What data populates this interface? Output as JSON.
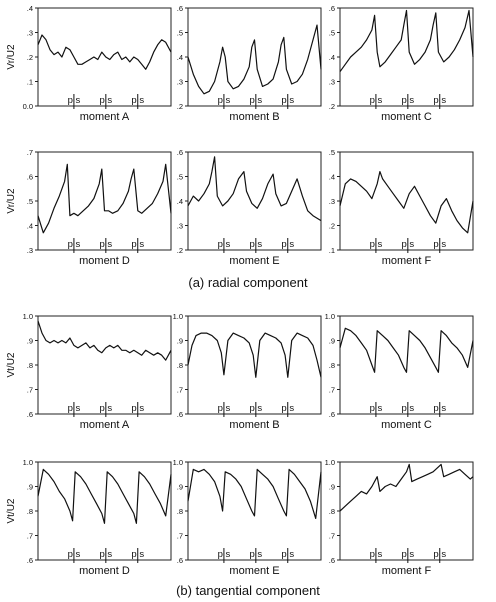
{
  "captions": {
    "radial": "(a) radial component",
    "tangential": "(b) tangential component"
  },
  "chart_data": [
    {
      "type": "line",
      "group": "radial",
      "title": "moment A",
      "ylabel": "Vr/U2",
      "ylim": [
        0.0,
        0.4
      ],
      "yticks": [
        "0.0",
        ".1",
        ".2",
        ".3",
        ".4"
      ],
      "markers": [
        "p|s",
        "p|s",
        "p|s"
      ],
      "series": [
        {
          "x": [
            0,
            0.03,
            0.06,
            0.09,
            0.12,
            0.15,
            0.18,
            0.21,
            0.24,
            0.27,
            0.3,
            0.33,
            0.36,
            0.39,
            0.42,
            0.45,
            0.48,
            0.51,
            0.54,
            0.57,
            0.6,
            0.63,
            0.66,
            0.69,
            0.72,
            0.75,
            0.78,
            0.81,
            0.84,
            0.87,
            0.9,
            0.93,
            0.96,
            1.0
          ],
          "y": [
            0.25,
            0.29,
            0.27,
            0.23,
            0.21,
            0.22,
            0.2,
            0.24,
            0.23,
            0.2,
            0.17,
            0.17,
            0.18,
            0.19,
            0.2,
            0.19,
            0.22,
            0.2,
            0.19,
            0.21,
            0.22,
            0.19,
            0.2,
            0.18,
            0.2,
            0.19,
            0.17,
            0.15,
            0.18,
            0.22,
            0.25,
            0.27,
            0.26,
            0.22
          ]
        }
      ]
    },
    {
      "type": "line",
      "group": "radial",
      "title": "moment B",
      "ylabel": "",
      "ylim": [
        0.2,
        0.6
      ],
      "yticks": [
        ".2",
        ".3",
        ".4",
        ".5",
        ".6"
      ],
      "markers": [
        "p|s",
        "p|s",
        "p|s"
      ],
      "series": [
        {
          "x": [
            0,
            0.04,
            0.08,
            0.12,
            0.16,
            0.2,
            0.24,
            0.26,
            0.28,
            0.3,
            0.34,
            0.38,
            0.42,
            0.46,
            0.48,
            0.5,
            0.52,
            0.56,
            0.6,
            0.64,
            0.68,
            0.7,
            0.72,
            0.74,
            0.78,
            0.82,
            0.86,
            0.9,
            0.94,
            0.97,
            1.0
          ],
          "y": [
            0.4,
            0.33,
            0.28,
            0.25,
            0.26,
            0.3,
            0.38,
            0.44,
            0.4,
            0.3,
            0.27,
            0.28,
            0.31,
            0.36,
            0.44,
            0.47,
            0.35,
            0.28,
            0.29,
            0.31,
            0.38,
            0.45,
            0.48,
            0.35,
            0.29,
            0.3,
            0.33,
            0.39,
            0.47,
            0.53,
            0.35
          ]
        }
      ]
    },
    {
      "type": "line",
      "group": "radial",
      "title": "moment C",
      "ylabel": "",
      "ylim": [
        0.2,
        0.6
      ],
      "yticks": [
        ".2",
        ".3",
        ".4",
        ".5",
        ".6"
      ],
      "markers": [
        "p|s",
        "p|s",
        "p|s"
      ],
      "series": [
        {
          "x": [
            0,
            0.04,
            0.08,
            0.12,
            0.16,
            0.2,
            0.24,
            0.26,
            0.28,
            0.3,
            0.34,
            0.38,
            0.42,
            0.46,
            0.48,
            0.5,
            0.52,
            0.56,
            0.6,
            0.64,
            0.68,
            0.7,
            0.72,
            0.74,
            0.78,
            0.82,
            0.86,
            0.9,
            0.94,
            0.97,
            1.0
          ],
          "y": [
            0.34,
            0.37,
            0.4,
            0.42,
            0.44,
            0.47,
            0.51,
            0.57,
            0.42,
            0.36,
            0.38,
            0.41,
            0.44,
            0.47,
            0.53,
            0.59,
            0.42,
            0.37,
            0.39,
            0.42,
            0.47,
            0.53,
            0.58,
            0.42,
            0.38,
            0.4,
            0.43,
            0.47,
            0.52,
            0.59,
            0.4
          ]
        }
      ]
    },
    {
      "type": "line",
      "group": "radial",
      "title": "moment D",
      "ylabel": "Vr/U2",
      "ylim": [
        0.3,
        0.7
      ],
      "yticks": [
        ".3",
        ".4",
        ".5",
        ".6",
        ".7"
      ],
      "markers": [
        "p|s",
        "p|s",
        "p|s"
      ],
      "series": [
        {
          "x": [
            0,
            0.04,
            0.08,
            0.12,
            0.16,
            0.2,
            0.22,
            0.24,
            0.27,
            0.3,
            0.34,
            0.38,
            0.42,
            0.46,
            0.48,
            0.5,
            0.53,
            0.56,
            0.6,
            0.64,
            0.68,
            0.7,
            0.72,
            0.75,
            0.78,
            0.82,
            0.86,
            0.9,
            0.94,
            0.96,
            1.0
          ],
          "y": [
            0.44,
            0.37,
            0.41,
            0.47,
            0.52,
            0.58,
            0.65,
            0.44,
            0.45,
            0.44,
            0.46,
            0.48,
            0.51,
            0.57,
            0.63,
            0.46,
            0.46,
            0.45,
            0.46,
            0.49,
            0.54,
            0.59,
            0.63,
            0.46,
            0.45,
            0.47,
            0.49,
            0.53,
            0.58,
            0.65,
            0.45
          ]
        }
      ]
    },
    {
      "type": "line",
      "group": "radial",
      "title": "moment E",
      "ylabel": "",
      "ylim": [
        0.2,
        0.6
      ],
      "yticks": [
        ".2",
        ".3",
        ".4",
        ".5",
        ".6"
      ],
      "markers": [
        "p|s",
        "p|s",
        "p|s"
      ],
      "series": [
        {
          "x": [
            0,
            0.04,
            0.08,
            0.12,
            0.16,
            0.18,
            0.2,
            0.22,
            0.26,
            0.3,
            0.34,
            0.38,
            0.42,
            0.44,
            0.48,
            0.52,
            0.56,
            0.6,
            0.64,
            0.66,
            0.7,
            0.74,
            0.78,
            0.82,
            0.86,
            0.9,
            0.94,
            1.0
          ],
          "y": [
            0.38,
            0.42,
            0.4,
            0.43,
            0.47,
            0.52,
            0.58,
            0.42,
            0.38,
            0.4,
            0.43,
            0.49,
            0.52,
            0.44,
            0.39,
            0.37,
            0.41,
            0.47,
            0.51,
            0.43,
            0.38,
            0.39,
            0.44,
            0.49,
            0.42,
            0.36,
            0.34,
            0.32
          ]
        }
      ]
    },
    {
      "type": "line",
      "group": "radial",
      "title": "moment F",
      "ylabel": "",
      "ylim": [
        0.1,
        0.5
      ],
      "yticks": [
        ".1",
        ".2",
        ".3",
        ".4",
        ".5"
      ],
      "markers": [
        "p|s",
        "p|s",
        "p|s"
      ],
      "series": [
        {
          "x": [
            0,
            0.04,
            0.08,
            0.12,
            0.16,
            0.2,
            0.24,
            0.28,
            0.3,
            0.32,
            0.36,
            0.4,
            0.44,
            0.48,
            0.52,
            0.56,
            0.6,
            0.64,
            0.68,
            0.72,
            0.76,
            0.8,
            0.84,
            0.88,
            0.92,
            0.96,
            1.0
          ],
          "y": [
            0.28,
            0.37,
            0.39,
            0.38,
            0.36,
            0.34,
            0.31,
            0.37,
            0.42,
            0.39,
            0.36,
            0.33,
            0.3,
            0.27,
            0.33,
            0.36,
            0.32,
            0.28,
            0.24,
            0.21,
            0.28,
            0.31,
            0.26,
            0.22,
            0.19,
            0.17,
            0.3
          ]
        }
      ]
    },
    {
      "type": "line",
      "group": "tangential",
      "title": "moment A",
      "ylabel": "Vt/U2",
      "ylim": [
        0.6,
        1.0
      ],
      "yticks": [
        ".6",
        ".7",
        ".8",
        ".9",
        "1.0"
      ],
      "markers": [
        "p|s",
        "p|s",
        "p|s"
      ],
      "series": [
        {
          "x": [
            0,
            0.03,
            0.06,
            0.09,
            0.12,
            0.15,
            0.18,
            0.21,
            0.24,
            0.27,
            0.3,
            0.33,
            0.36,
            0.39,
            0.42,
            0.45,
            0.48,
            0.51,
            0.54,
            0.57,
            0.6,
            0.63,
            0.66,
            0.69,
            0.72,
            0.75,
            0.78,
            0.81,
            0.84,
            0.87,
            0.9,
            0.93,
            0.96,
            1.0
          ],
          "y": [
            0.98,
            0.93,
            0.9,
            0.89,
            0.9,
            0.89,
            0.9,
            0.89,
            0.91,
            0.88,
            0.87,
            0.88,
            0.89,
            0.87,
            0.88,
            0.86,
            0.85,
            0.87,
            0.88,
            0.87,
            0.88,
            0.86,
            0.86,
            0.85,
            0.86,
            0.85,
            0.84,
            0.86,
            0.85,
            0.84,
            0.85,
            0.84,
            0.82,
            0.86
          ]
        }
      ]
    },
    {
      "type": "line",
      "group": "tangential",
      "title": "moment B",
      "ylabel": "",
      "ylim": [
        0.6,
        1.0
      ],
      "yticks": [
        ".6",
        ".7",
        ".8",
        ".9",
        "1.0"
      ],
      "markers": [
        "p|s",
        "p|s",
        "p|s"
      ],
      "series": [
        {
          "x": [
            0,
            0.03,
            0.06,
            0.1,
            0.14,
            0.18,
            0.22,
            0.25,
            0.27,
            0.3,
            0.34,
            0.38,
            0.42,
            0.46,
            0.49,
            0.51,
            0.54,
            0.58,
            0.62,
            0.66,
            0.7,
            0.73,
            0.75,
            0.78,
            0.82,
            0.86,
            0.9,
            0.94,
            0.97,
            1.0
          ],
          "y": [
            0.8,
            0.88,
            0.92,
            0.93,
            0.93,
            0.92,
            0.9,
            0.85,
            0.76,
            0.9,
            0.93,
            0.92,
            0.91,
            0.89,
            0.84,
            0.75,
            0.9,
            0.93,
            0.92,
            0.91,
            0.89,
            0.84,
            0.75,
            0.9,
            0.93,
            0.92,
            0.91,
            0.88,
            0.82,
            0.75
          ]
        }
      ]
    },
    {
      "type": "line",
      "group": "tangential",
      "title": "moment C",
      "ylabel": "",
      "ylim": [
        0.6,
        1.0
      ],
      "yticks": [
        ".6",
        ".7",
        ".8",
        ".9",
        "1.0"
      ],
      "markers": [
        "p|s",
        "p|s",
        "p|s"
      ],
      "series": [
        {
          "x": [
            0,
            0.04,
            0.08,
            0.12,
            0.16,
            0.2,
            0.24,
            0.26,
            0.28,
            0.32,
            0.36,
            0.4,
            0.44,
            0.48,
            0.5,
            0.52,
            0.56,
            0.6,
            0.64,
            0.68,
            0.72,
            0.74,
            0.76,
            0.8,
            0.84,
            0.88,
            0.92,
            0.96,
            1.0
          ],
          "y": [
            0.87,
            0.95,
            0.94,
            0.92,
            0.89,
            0.86,
            0.8,
            0.77,
            0.94,
            0.92,
            0.9,
            0.87,
            0.84,
            0.79,
            0.77,
            0.94,
            0.92,
            0.9,
            0.87,
            0.83,
            0.79,
            0.77,
            0.94,
            0.92,
            0.89,
            0.87,
            0.84,
            0.79,
            0.9
          ]
        }
      ]
    },
    {
      "type": "line",
      "group": "tangential",
      "title": "moment D",
      "ylabel": "Vt/U2",
      "ylim": [
        0.6,
        1.0
      ],
      "yticks": [
        ".6",
        ".7",
        ".8",
        ".9",
        "1.0"
      ],
      "markers": [
        "p|s",
        "p|s",
        "p|s"
      ],
      "series": [
        {
          "x": [
            0,
            0.04,
            0.08,
            0.12,
            0.16,
            0.2,
            0.24,
            0.26,
            0.28,
            0.32,
            0.36,
            0.4,
            0.44,
            0.48,
            0.5,
            0.52,
            0.56,
            0.6,
            0.64,
            0.68,
            0.72,
            0.74,
            0.76,
            0.8,
            0.84,
            0.88,
            0.92,
            0.96,
            1.0
          ],
          "y": [
            0.86,
            0.97,
            0.95,
            0.92,
            0.88,
            0.85,
            0.8,
            0.76,
            0.96,
            0.94,
            0.91,
            0.87,
            0.83,
            0.79,
            0.75,
            0.96,
            0.94,
            0.91,
            0.87,
            0.83,
            0.79,
            0.75,
            0.96,
            0.94,
            0.91,
            0.87,
            0.83,
            0.78,
            0.95
          ]
        }
      ]
    },
    {
      "type": "line",
      "group": "tangential",
      "title": "moment E",
      "ylabel": "",
      "ylim": [
        0.6,
        1.0
      ],
      "yticks": [
        ".6",
        ".7",
        ".8",
        ".9",
        "1.0"
      ],
      "markers": [
        "p|s",
        "p|s",
        "p|s"
      ],
      "series": [
        {
          "x": [
            0,
            0.04,
            0.08,
            0.12,
            0.16,
            0.2,
            0.24,
            0.26,
            0.28,
            0.32,
            0.36,
            0.4,
            0.44,
            0.48,
            0.5,
            0.52,
            0.56,
            0.6,
            0.64,
            0.68,
            0.72,
            0.74,
            0.76,
            0.8,
            0.84,
            0.88,
            0.92,
            0.96,
            1.0
          ],
          "y": [
            0.84,
            0.97,
            0.96,
            0.97,
            0.95,
            0.92,
            0.86,
            0.8,
            0.96,
            0.95,
            0.93,
            0.9,
            0.85,
            0.8,
            0.78,
            0.97,
            0.95,
            0.93,
            0.9,
            0.85,
            0.8,
            0.78,
            0.97,
            0.95,
            0.92,
            0.89,
            0.84,
            0.77,
            0.96
          ]
        }
      ]
    },
    {
      "type": "line",
      "group": "tangential",
      "title": "moment F",
      "ylabel": "",
      "ylim": [
        0.6,
        1.0
      ],
      "yticks": [
        ".6",
        ".7",
        ".8",
        ".9",
        "1.0"
      ],
      "markers": [
        "p|s",
        "p|s",
        "p|s"
      ],
      "series": [
        {
          "x": [
            0,
            0.04,
            0.08,
            0.12,
            0.16,
            0.2,
            0.24,
            0.28,
            0.3,
            0.34,
            0.38,
            0.42,
            0.46,
            0.5,
            0.52,
            0.54,
            0.58,
            0.62,
            0.66,
            0.7,
            0.74,
            0.76,
            0.78,
            0.82,
            0.86,
            0.9,
            0.94,
            0.98,
            1.0
          ],
          "y": [
            0.8,
            0.82,
            0.84,
            0.86,
            0.88,
            0.87,
            0.9,
            0.94,
            0.88,
            0.9,
            0.91,
            0.9,
            0.93,
            0.96,
            0.99,
            0.92,
            0.93,
            0.94,
            0.95,
            0.96,
            0.98,
            0.99,
            0.94,
            0.95,
            0.96,
            0.97,
            0.95,
            0.93,
            0.94
          ]
        }
      ]
    }
  ]
}
